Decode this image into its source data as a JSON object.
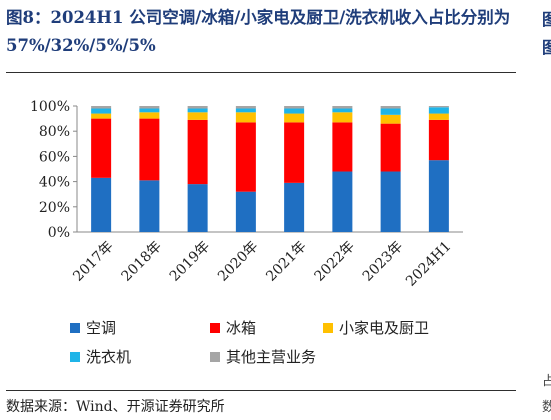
{
  "title": "图8：2024H1 公司空调/冰箱/小家电及厨卫/洗衣机收入占比分别为 57%/32%/5%/5%",
  "source": "数据来源：Wind、开源证券研究所",
  "right_edge_glyphs": [
    "图",
    "图",
    "占",
    "数"
  ],
  "chart_data": {
    "type": "bar",
    "stacked": true,
    "categories": [
      "2017年",
      "2018年",
      "2019年",
      "2020年",
      "2021年",
      "2022年",
      "2023年",
      "2024H1"
    ],
    "ylim": [
      0,
      100
    ],
    "yticks": [
      "0%",
      "20%",
      "40%",
      "60%",
      "80%",
      "100%"
    ],
    "grid": false,
    "legend_position": "bottom",
    "series": [
      {
        "name": "空调",
        "color": "#1f6fc2",
        "values": [
          43,
          41,
          38,
          32,
          39,
          48,
          48,
          57
        ]
      },
      {
        "name": "冰箱",
        "color": "#ff0000",
        "values": [
          47,
          49,
          51,
          55,
          48,
          39,
          38,
          32
        ]
      },
      {
        "name": "小家电及厨卫",
        "color": "#ffc000",
        "values": [
          4,
          5,
          6,
          8,
          7,
          8,
          7,
          5
        ]
      },
      {
        "name": "洗衣机",
        "color": "#1fb4e8",
        "values": [
          4,
          3,
          3,
          3,
          4,
          3,
          5,
          5
        ]
      },
      {
        "name": "其他主营业务",
        "color": "#a5a5a5",
        "values": [
          2,
          2,
          2,
          2,
          2,
          2,
          2,
          1
        ]
      }
    ]
  }
}
